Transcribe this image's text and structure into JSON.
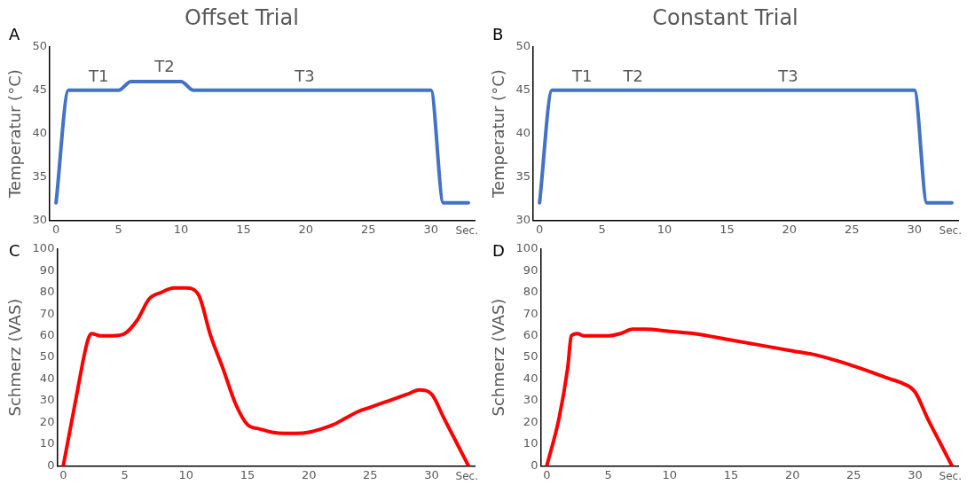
{
  "chart_data": [
    {
      "type": "line",
      "title": "Offset Trial",
      "ylabel": "Temperatur (°C)",
      "xlabel": "Sec.",
      "xlim": [
        -0.5,
        33.5
      ],
      "xticks": [
        0,
        5,
        10,
        15,
        20,
        25,
        30
      ],
      "ylim": [
        30,
        50
      ],
      "yticks": [
        30,
        35,
        40,
        45,
        50
      ],
      "grid": false,
      "legend": false,
      "marker": "none",
      "line_style": "solid",
      "series": [
        {
          "color": "#4472c4",
          "x": [
            0,
            1,
            5,
            6,
            10,
            11,
            30,
            31,
            33
          ],
          "values": [
            32,
            45,
            45,
            46,
            46,
            45,
            45,
            32,
            32
          ]
        }
      ],
      "annotations": [
        "A",
        "T1",
        "T2",
        "T3"
      ]
    },
    {
      "type": "line",
      "title": "Constant Trial",
      "ylabel": "Temperatur (°C)",
      "xlabel": "Sec.",
      "xlim": [
        -0.5,
        33.5
      ],
      "xticks": [
        0,
        5,
        10,
        15,
        20,
        25,
        30
      ],
      "ylim": [
        30,
        50
      ],
      "yticks": [
        30,
        35,
        40,
        45,
        50
      ],
      "grid": false,
      "legend": false,
      "marker": "none",
      "line_style": "solid",
      "series": [
        {
          "color": "#4472c4",
          "x": [
            0,
            1,
            30,
            31,
            33
          ],
          "values": [
            32,
            45,
            45,
            32,
            32
          ]
        }
      ],
      "annotations": [
        "B",
        "T1",
        "T2",
        "T3"
      ]
    },
    {
      "type": "line",
      "ylabel": "Schmerz (VAS)",
      "xlabel": "Sec.",
      "xlim": [
        -0.5,
        33.5
      ],
      "xticks": [
        0,
        5,
        10,
        15,
        20,
        25,
        30
      ],
      "ylim": [
        0,
        100
      ],
      "yticks": [
        0,
        10,
        20,
        30,
        40,
        50,
        60,
        70,
        80,
        90,
        100
      ],
      "grid": false,
      "legend": false,
      "marker": "none",
      "line_style": "solid",
      "series": [
        {
          "color": "#ff0000",
          "x": [
            0,
            1,
            2,
            2.3,
            3,
            4,
            5,
            6,
            7,
            8,
            9,
            10,
            11,
            12,
            13,
            14,
            15,
            16,
            17,
            18,
            19,
            20,
            21,
            22,
            23,
            24,
            25,
            26,
            27,
            28,
            29,
            30,
            31,
            32,
            33
          ],
          "values": [
            0,
            30,
            58,
            61,
            60,
            60,
            61,
            67,
            77,
            80,
            82,
            82,
            79,
            60,
            45,
            29,
            19,
            17,
            15.5,
            15,
            15,
            15.5,
            17,
            19,
            22,
            25,
            27,
            29,
            31,
            33,
            35,
            33,
            22,
            11,
            0
          ]
        }
      ],
      "annotations": [
        "C"
      ]
    },
    {
      "type": "line",
      "ylabel": "Schmerz (VAS)",
      "xlabel": "Sec.",
      "xlim": [
        -0.5,
        33.5
      ],
      "xticks": [
        0,
        5,
        10,
        15,
        20,
        25,
        30
      ],
      "ylim": [
        0,
        100
      ],
      "yticks": [
        0,
        10,
        20,
        30,
        40,
        50,
        60,
        70,
        80,
        90,
        100
      ],
      "grid": false,
      "legend": false,
      "marker": "none",
      "line_style": "solid",
      "series": [
        {
          "color": "#ff0000",
          "x": [
            0,
            1,
            1.7,
            2,
            2.5,
            3,
            5,
            6,
            7,
            8,
            10,
            12,
            15,
            20,
            22,
            25,
            28,
            29,
            30,
            31,
            32,
            33
          ],
          "values": [
            0,
            22,
            45,
            60,
            61,
            60,
            60,
            61,
            63,
            63,
            62,
            61,
            58,
            53,
            51,
            46,
            40,
            38,
            34,
            22,
            11,
            0
          ]
        }
      ],
      "annotations": [
        "D"
      ]
    }
  ]
}
